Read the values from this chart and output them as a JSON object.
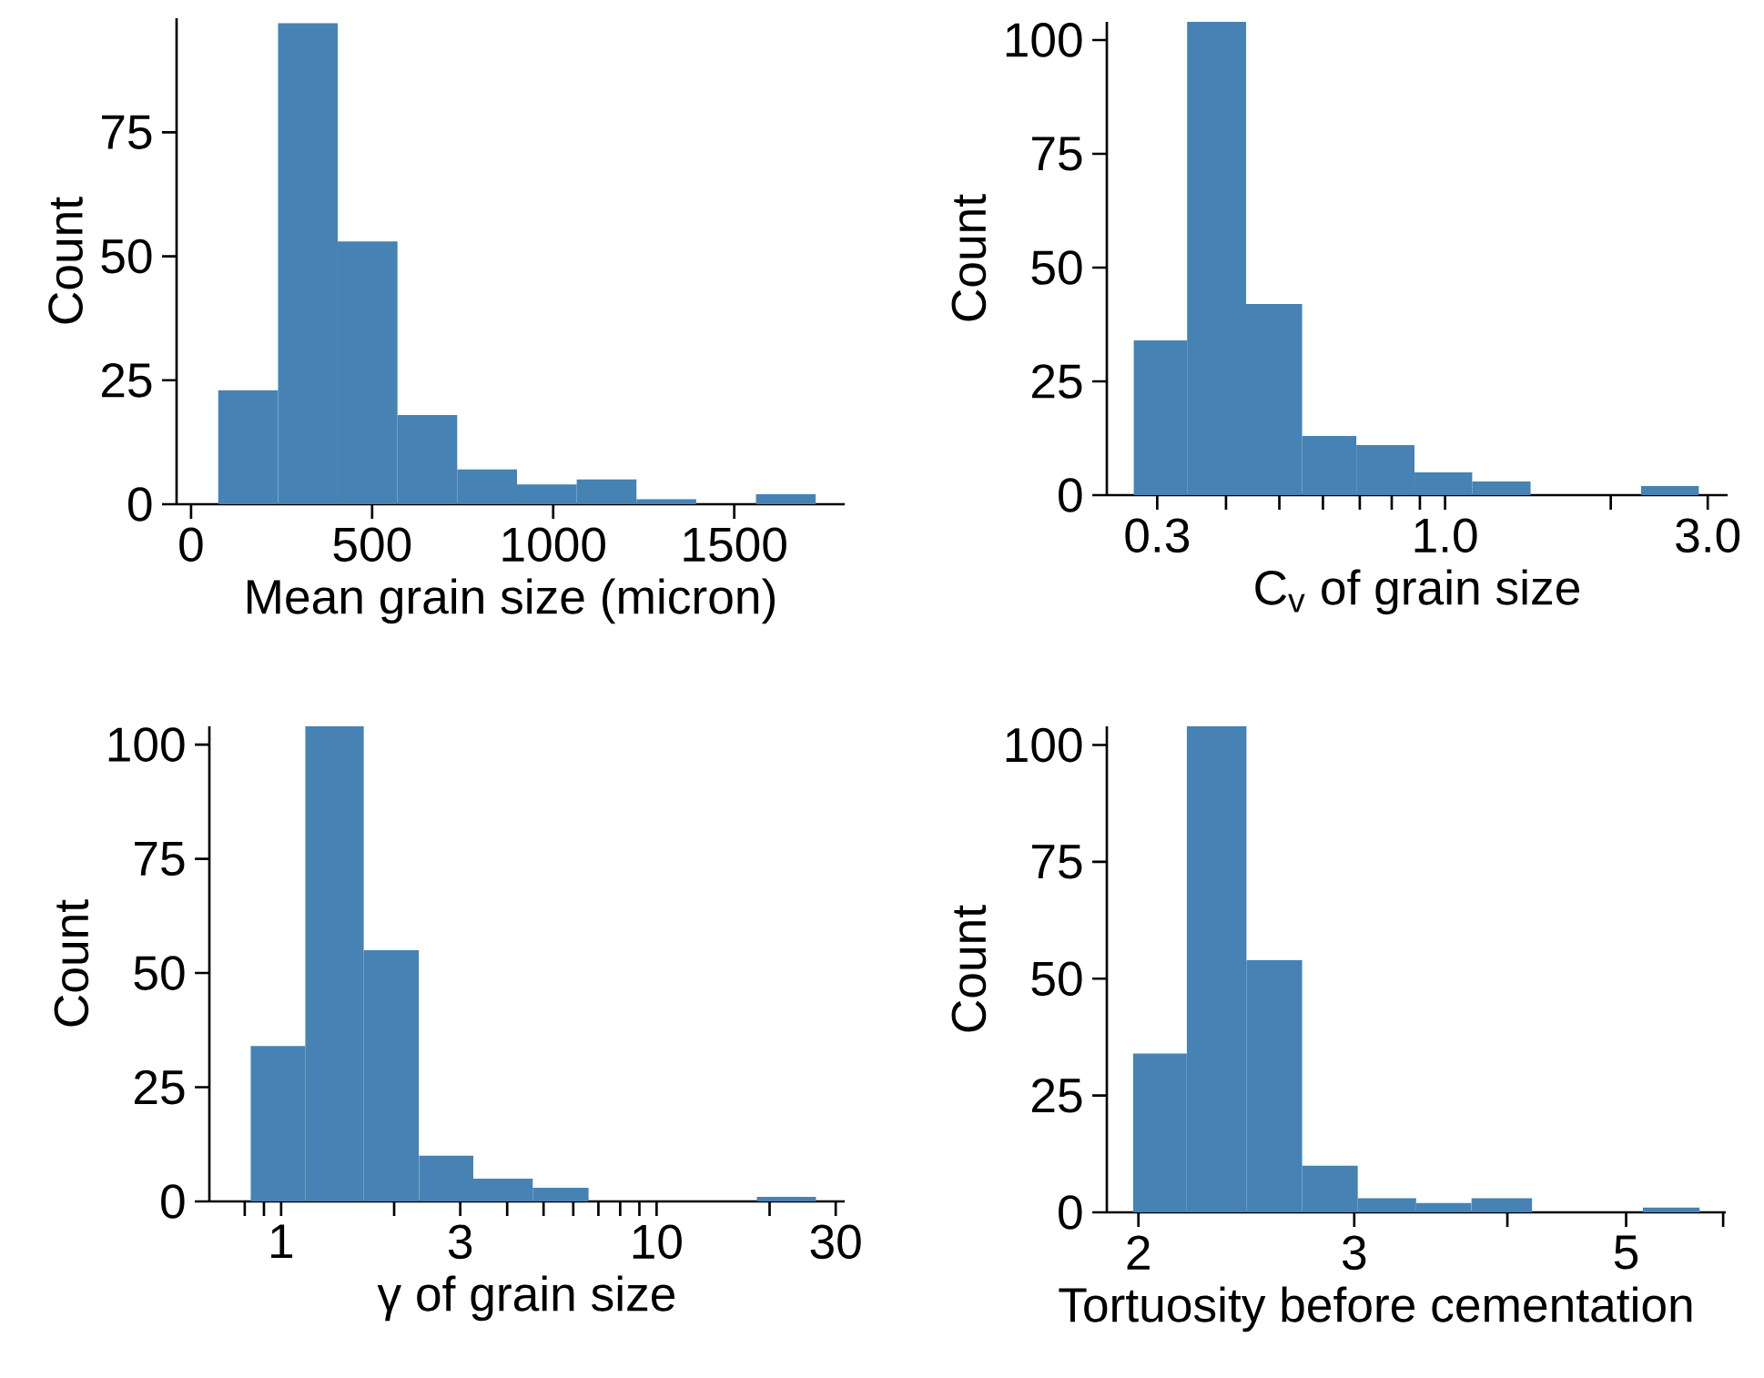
{
  "chart_data": [
    {
      "type": "histogram",
      "xlabel": "Mean grain size (micron)",
      "ylabel": "Count",
      "color": "#4682b4",
      "bins": [
        75,
        240,
        405,
        570,
        735,
        900,
        1065,
        1230,
        1395,
        1560,
        1725
      ],
      "values": [
        23,
        97,
        53,
        18,
        7,
        4,
        5,
        1,
        0,
        2
      ],
      "xlim": [
        -40,
        1805
      ],
      "ylim": [
        0,
        98
      ],
      "xticks": [
        0,
        500,
        1000,
        1500
      ],
      "yticks": [
        0,
        25,
        50,
        75
      ]
    },
    {
      "type": "histogram",
      "xlabel": "C$_{v}$ of grain size",
      "ylabel": "Count",
      "color": "#4682b4",
      "log": "x",
      "bins": [
        0.272,
        0.34,
        0.435,
        0.55,
        0.69,
        0.88,
        1.12,
        1.43,
        2.27,
        2.89
      ],
      "values": [
        34,
        104,
        42,
        13,
        11,
        5,
        3,
        0,
        2
      ],
      "xlim": [
        0.243,
        3.26
      ],
      "ylim": [
        0,
        104
      ],
      "xticks": [
        0.3,
        {
          "value": 0.4,
          "label": null
        },
        {
          "value": 0.5,
          "label": null
        },
        {
          "value": 0.6,
          "label": null
        },
        {
          "value": 0.7,
          "label": null
        },
        {
          "value": 0.8,
          "label": null
        },
        {
          "value": 0.9,
          "label": null
        },
        {
          "value": 1,
          "label": "1.0"
        },
        {
          "value": 2,
          "label": null
        },
        {
          "value": 3,
          "label": "3.0"
        }
      ],
      "yticks": [
        0,
        25,
        50,
        75,
        100
      ]
    },
    {
      "type": "histogram",
      "xlabel": "γ of grain size",
      "ylabel": "Count",
      "color": "#4682b4",
      "log": "x",
      "bins": [
        0.83,
        1.16,
        1.66,
        2.33,
        3.25,
        4.68,
        6.59,
        18.5,
        26.6
      ],
      "values": [
        34,
        104,
        55,
        10,
        5,
        3,
        0,
        1
      ],
      "xlim": [
        0.644,
        31.7
      ],
      "ylim": [
        0,
        104
      ],
      "xticks": [
        {
          "value": 0.8,
          "label": null
        },
        {
          "value": 0.9,
          "label": null
        },
        1,
        {
          "value": 2,
          "label": null
        },
        3,
        {
          "value": 4,
          "label": null
        },
        {
          "value": 5,
          "label": null
        },
        {
          "value": 6,
          "label": null
        },
        {
          "value": 7,
          "label": null
        },
        {
          "value": 8,
          "label": null
        },
        {
          "value": 9,
          "label": null
        },
        10,
        {
          "value": 20,
          "label": null
        },
        30
      ],
      "yticks": [
        0,
        25,
        50,
        75,
        100
      ]
    },
    {
      "type": "histogram",
      "xlabel": "Tortuosity before cementation",
      "ylabel": "Count",
      "color": "#4682b4",
      "log": "x",
      "bins": [
        1.98,
        2.19,
        2.45,
        2.72,
        3.02,
        3.37,
        3.74,
        4.19,
        5.16,
        5.74
      ],
      "values": [
        34,
        104,
        54,
        10,
        3,
        2,
        3,
        0,
        1
      ],
      "xlim": [
        1.885,
        6.03
      ],
      "ylim": [
        0,
        104
      ],
      "xticks": [
        2,
        3,
        {
          "value": 4,
          "label": null
        },
        5,
        {
          "value": 6,
          "label": null
        }
      ],
      "yticks": [
        0,
        25,
        50,
        75,
        100
      ]
    }
  ]
}
